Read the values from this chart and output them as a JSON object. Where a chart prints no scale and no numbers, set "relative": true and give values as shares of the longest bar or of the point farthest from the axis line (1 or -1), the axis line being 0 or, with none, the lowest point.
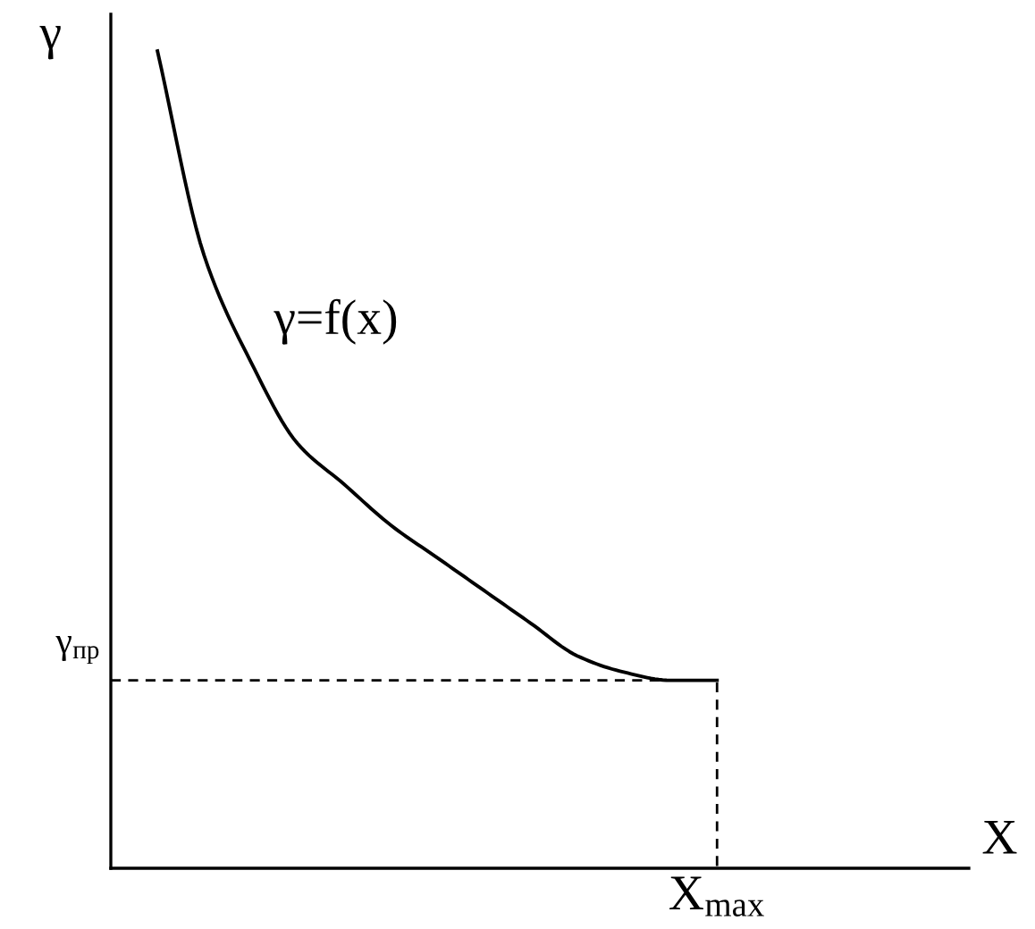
{
  "chart_data": {
    "type": "line",
    "relative": true,
    "ylabel": "γ",
    "categories": [
      null,
      null,
      null,
      null,
      null,
      null,
      null,
      null,
      null,
      null,
      null,
      null,
      null
    ],
    "series": [
      {
        "color": "#000000",
        "values": [
          1,
          0.75,
          0.62,
          0.52,
          0.47,
          0.42,
          0.38,
          0.34,
          0.3,
          0.26,
          0.24,
          0.23,
          0.23
        ]
      }
    ],
    "annotations": [
      "γ=f(x)",
      "X",
      "X$_{max}$"
    ],
    "ref_lines": [
      {
        "axis": "y",
        "value": 0.23,
        "label": "γ$_{пр}$",
        "line_style": "dashed"
      }
    ]
  }
}
